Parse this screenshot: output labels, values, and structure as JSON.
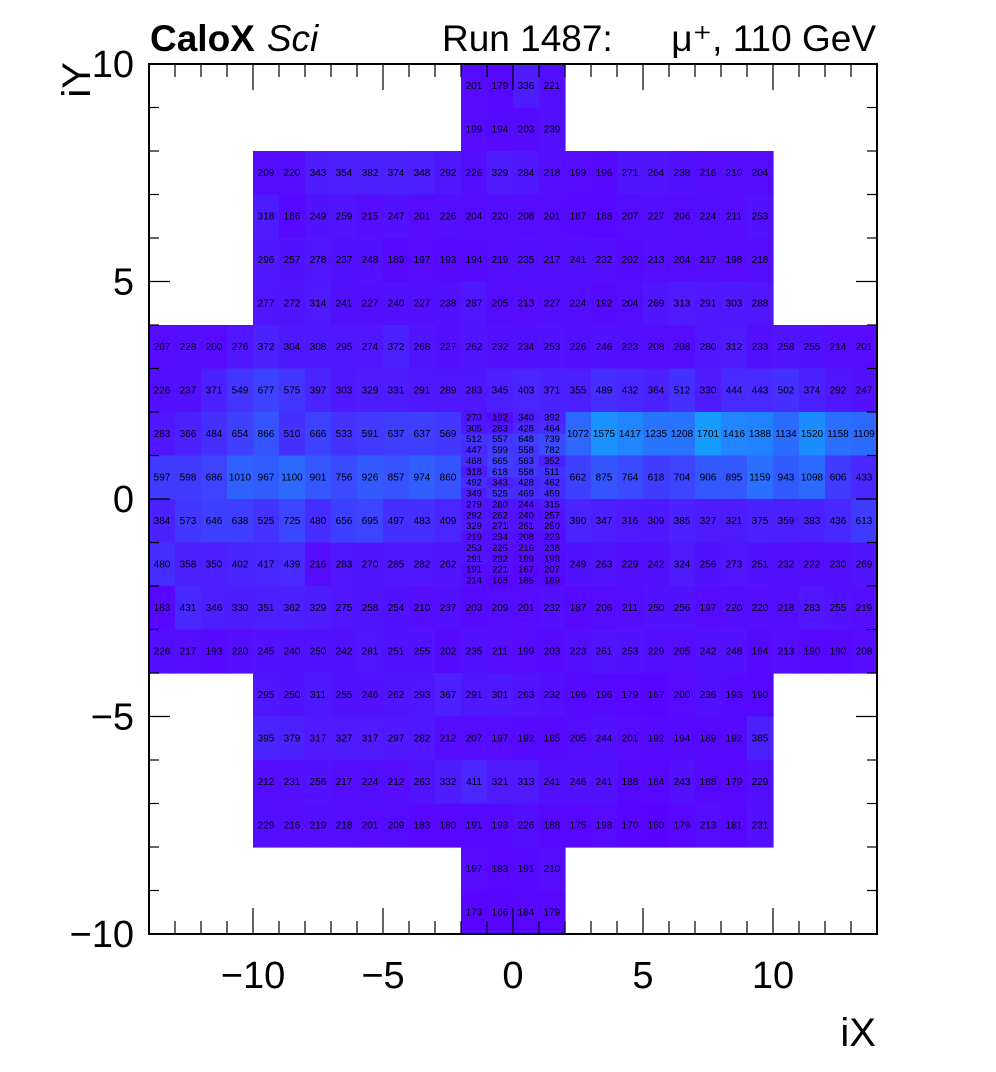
{
  "header": {
    "brand": "CaloX",
    "brand_sub": "Sci",
    "run_label": "Run 1487:",
    "beam": "μ⁺, 110 GeV"
  },
  "chart_data": {
    "type": "heatmap",
    "xlabel": "iX",
    "ylabel": "iY",
    "xlim": [
      -14,
      14
    ],
    "ylim": [
      -10,
      10
    ],
    "xticks": [
      "−10",
      "−5",
      "0",
      "5",
      "10"
    ],
    "xtick_values": [
      -10,
      -5,
      0,
      5,
      10
    ],
    "yticks": [
      "−10",
      "−5",
      "0",
      "5",
      "10"
    ],
    "ytick_values": [
      -10,
      -5,
      0,
      5,
      10
    ],
    "color_low": "#5a00ff",
    "color_high": "#14a0ff",
    "z_min": 150,
    "z_max": 1750,
    "regions": [
      {
        "x_start": -2,
        "dx": 1,
        "y_start": 10,
        "dy": 1,
        "rows": [
          [
            201,
            179,
            336,
            221
          ],
          [
            199,
            194,
            203,
            239
          ]
        ]
      },
      {
        "x_start": -10,
        "dx": 1,
        "y_start": 8,
        "dy": 1,
        "rows": [
          [
            209,
            220,
            343,
            354,
            382,
            374,
            348,
            292,
            226,
            329,
            284,
            218,
            199,
            196,
            271,
            264,
            238,
            216,
            210,
            204
          ],
          [
            318,
            186,
            249,
            259,
            215,
            247,
            201,
            226,
            204,
            220,
            208,
            201,
            187,
            188,
            207,
            227,
            206,
            224,
            211,
            253
          ],
          [
            296,
            257,
            278,
            237,
            248,
            189,
            197,
            193,
            194,
            219,
            235,
            217,
            241,
            232,
            202,
            213,
            204,
            217,
            198,
            218
          ],
          [
            277,
            272,
            314,
            241,
            227,
            240,
            227,
            238,
            287,
            205,
            213,
            227,
            224,
            192,
            204,
            269,
            313,
            291,
            303,
            288
          ]
        ]
      },
      {
        "x_start": -14,
        "dx": 1,
        "y_start": 4,
        "dy": 1,
        "rows": [
          [
            207,
            228,
            200,
            276,
            372,
            304,
            308,
            295,
            274,
            372,
            268,
            227,
            262,
            232,
            234,
            253,
            226,
            246,
            223,
            208,
            208,
            280,
            312,
            233,
            258,
            255,
            214,
            201
          ],
          [
            226,
            237,
            371,
            549,
            677,
            575,
            397,
            303,
            329,
            331,
            291,
            289,
            283,
            345,
            403,
            371,
            355,
            489,
            432,
            364,
            512,
            330,
            444,
            443,
            502,
            374,
            292,
            247
          ]
        ]
      },
      {
        "x_start": -14,
        "dx": 1,
        "y_start": 2,
        "dy": 1,
        "skip_x_start": -2,
        "skip_x_end": 2,
        "rows": [
          [
            283,
            366,
            484,
            654,
            866,
            510,
            666,
            533,
            591,
            637,
            637,
            569,
            1072,
            1575,
            1417,
            1235,
            1208,
            1701,
            1416,
            1388,
            1134,
            1520,
            1158,
            1109
          ],
          [
            597,
            598,
            686,
            1010,
            967,
            1100,
            901,
            756,
            926,
            857,
            974,
            860,
            662,
            875,
            764,
            618,
            704,
            906,
            895,
            1159,
            943,
            1098,
            606,
            433
          ],
          [
            384,
            573,
            646,
            638,
            525,
            725,
            480,
            656,
            695,
            497,
            483,
            409,
            390,
            347,
            316,
            309,
            385,
            327,
            321,
            375,
            359,
            383,
            436,
            613
          ],
          [
            480,
            358,
            350,
            402,
            417,
            439,
            216,
            283,
            270,
            285,
            282,
            262,
            249,
            263,
            229,
            242,
            324,
            256,
            273,
            251,
            232,
            222,
            230,
            269
          ]
        ]
      },
      {
        "x_start": -2,
        "dx": 1,
        "y_start": 2,
        "dy": 0.25,
        "rows": [
          [
            270,
            192,
            340,
            392
          ],
          [
            305,
            283,
            428,
            464
          ],
          [
            512,
            557,
            648,
            739
          ],
          [
            447,
            599,
            558,
            782
          ],
          [
            468,
            665,
            563,
            352
          ],
          [
            318,
            618,
            558,
            511
          ],
          [
            492,
            343,
            428,
            462
          ],
          [
            349,
            525,
            469,
            459
          ],
          [
            279,
            280,
            244,
            315
          ],
          [
            292,
            262,
            240,
            257
          ],
          [
            329,
            271,
            261,
            250
          ],
          [
            219,
            234,
            208,
            223
          ],
          [
            253,
            225,
            216,
            238
          ],
          [
            291,
            232,
            199,
            193
          ],
          [
            191,
            221,
            167,
            207
          ],
          [
            214,
            168,
            185,
            189
          ]
        ]
      },
      {
        "x_start": -14,
        "dx": 1,
        "y_start": -2,
        "dy": 1,
        "rows": [
          [
            183,
            431,
            346,
            330,
            351,
            362,
            329,
            275,
            258,
            254,
            210,
            237,
            203,
            209,
            201,
            232,
            187,
            206,
            211,
            250,
            256,
            197,
            220,
            220,
            218,
            283,
            255,
            219
          ],
          [
            226,
            217,
            193,
            220,
            245,
            240,
            250,
            242,
            281,
            251,
            255,
            202,
            235,
            211,
            199,
            203,
            223,
            261,
            253,
            229,
            205,
            242,
            248,
            194,
            213,
            190,
            190,
            208
          ]
        ]
      },
      {
        "x_start": -10,
        "dx": 1,
        "y_start": -4,
        "dy": 1,
        "rows": [
          [
            295,
            250,
            311,
            255,
            246,
            262,
            293,
            367,
            291,
            301,
            263,
            232,
            196,
            196,
            179,
            167,
            200,
            236,
            193,
            190
          ],
          [
            395,
            379,
            317,
            327,
            317,
            297,
            282,
            212,
            207,
            197,
            192,
            185,
            205,
            244,
            201,
            192,
            194,
            189,
            192,
            385
          ],
          [
            212,
            231,
            256,
            217,
            224,
            212,
            263,
            332,
            411,
            321,
            313,
            241,
            246,
            241,
            188,
            184,
            243,
            188,
            179,
            229
          ],
          [
            229,
            216,
            219,
            218,
            201,
            209,
            183,
            180,
            191,
            193,
            226,
            188,
            175,
            198,
            170,
            160,
            179,
            213,
            181,
            231
          ]
        ]
      },
      {
        "x_start": -2,
        "dx": 1,
        "y_start": -8,
        "dy": 1,
        "rows": [
          [
            197,
            183,
            191,
            210
          ],
          [
            173,
            166,
            184,
            179
          ]
        ]
      }
    ]
  }
}
